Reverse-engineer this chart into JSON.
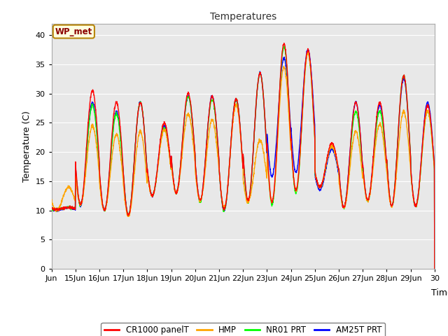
{
  "title": "Temperatures",
  "xlabel": "Time",
  "ylabel": "Temperature (C)",
  "xlim_days": [
    14,
    30
  ],
  "ylim": [
    0,
    42
  ],
  "yticks": [
    0,
    5,
    10,
    15,
    20,
    25,
    30,
    35,
    40
  ],
  "xtick_labels": [
    "Jun",
    "15Jun",
    "16Jun",
    "17Jun",
    "18Jun",
    "19Jun",
    "20Jun",
    "21Jun",
    "22Jun",
    "23Jun",
    "24Jun",
    "25Jun",
    "26Jun",
    "27Jun",
    "28Jun",
    "29Jun",
    "30"
  ],
  "xtick_days": [
    14,
    15,
    16,
    17,
    18,
    19,
    20,
    21,
    22,
    23,
    24,
    25,
    26,
    27,
    28,
    29,
    30
  ],
  "annotation_text": "WP_met",
  "series_colors": [
    "red",
    "orange",
    "lime",
    "blue"
  ],
  "series_labels": [
    "CR1000 panelT",
    "HMP",
    "NR01 PRT",
    "AM25T PRT"
  ],
  "background_color": "#e8e8e8",
  "figure_bg": "#ffffff",
  "grid_color": "#ffffff",
  "day_centers": [
    14.5,
    15.5,
    16.5,
    17.5,
    18.5,
    19.5,
    20.5,
    21.5,
    22.5,
    23.5,
    24.5,
    25.5,
    26.5,
    27.5,
    28.5,
    29.5
  ],
  "peaks_red": [
    10.5,
    30.5,
    28.5,
    28.5,
    25.0,
    30.0,
    29.5,
    29.0,
    33.5,
    38.5,
    37.5,
    21.5,
    28.5,
    28.5,
    33.0,
    28.0
  ],
  "troughs_red": [
    10.2,
    11.0,
    10.0,
    9.2,
    12.5,
    13.0,
    11.7,
    10.2,
    11.8,
    11.5,
    13.5,
    14.0,
    10.5,
    11.8,
    10.8,
    10.8
  ],
  "peaks_orange": [
    14.0,
    24.5,
    23.0,
    23.5,
    23.8,
    26.5,
    25.5,
    28.0,
    22.0,
    34.5,
    37.0,
    21.0,
    23.5,
    24.8,
    27.0,
    27.0
  ],
  "troughs_orange": [
    10.0,
    11.0,
    10.0,
    9.0,
    12.5,
    13.0,
    11.7,
    10.5,
    11.5,
    11.5,
    13.5,
    14.0,
    10.5,
    11.8,
    10.8,
    10.8
  ],
  "peaks_green": [
    10.5,
    28.0,
    26.5,
    28.5,
    24.0,
    29.5,
    29.0,
    29.0,
    33.5,
    38.0,
    37.0,
    21.0,
    27.0,
    27.0,
    33.0,
    27.0
  ],
  "troughs_green": [
    10.2,
    11.0,
    10.0,
    9.2,
    12.5,
    13.0,
    11.5,
    10.0,
    11.5,
    11.0,
    13.0,
    14.0,
    10.5,
    11.7,
    10.7,
    10.7
  ],
  "peaks_blue": [
    10.5,
    28.5,
    27.0,
    28.5,
    24.5,
    29.5,
    29.5,
    29.0,
    33.5,
    36.0,
    37.5,
    20.5,
    28.5,
    28.0,
    32.5,
    28.5
  ],
  "troughs_blue": [
    10.0,
    10.8,
    10.0,
    9.2,
    12.5,
    13.0,
    11.7,
    10.0,
    11.5,
    15.8,
    16.5,
    13.5,
    10.5,
    11.7,
    10.7,
    10.7
  ]
}
